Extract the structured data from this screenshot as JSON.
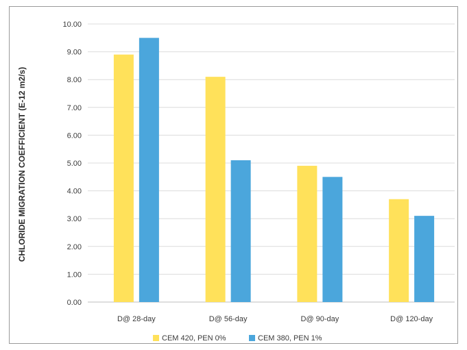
{
  "chart_data": {
    "type": "bar",
    "title": "",
    "xlabel": "",
    "ylabel": "CHLORIDE MIGRATION COEFFICIENT (E-12 m2/s)",
    "categories": [
      "D@ 28-day",
      "D@ 56-day",
      "D@ 90-day",
      "D@ 120-day"
    ],
    "series": [
      {
        "name": "CEM 420, PEN 0%",
        "values": [
          8.9,
          8.1,
          4.9,
          3.7
        ],
        "color": "#ffe15a"
      },
      {
        "name": "CEM 380, PEN 1%",
        "values": [
          9.5,
          5.1,
          4.5,
          3.1
        ],
        "color": "#4ba6dc"
      }
    ],
    "ylim": [
      0,
      10
    ],
    "yticks": [
      "0.00",
      "1.00",
      "2.00",
      "3.00",
      "4.00",
      "5.00",
      "6.00",
      "7.00",
      "8.00",
      "9.00",
      "10.00"
    ],
    "grid": true,
    "legend_position": "bottom"
  }
}
